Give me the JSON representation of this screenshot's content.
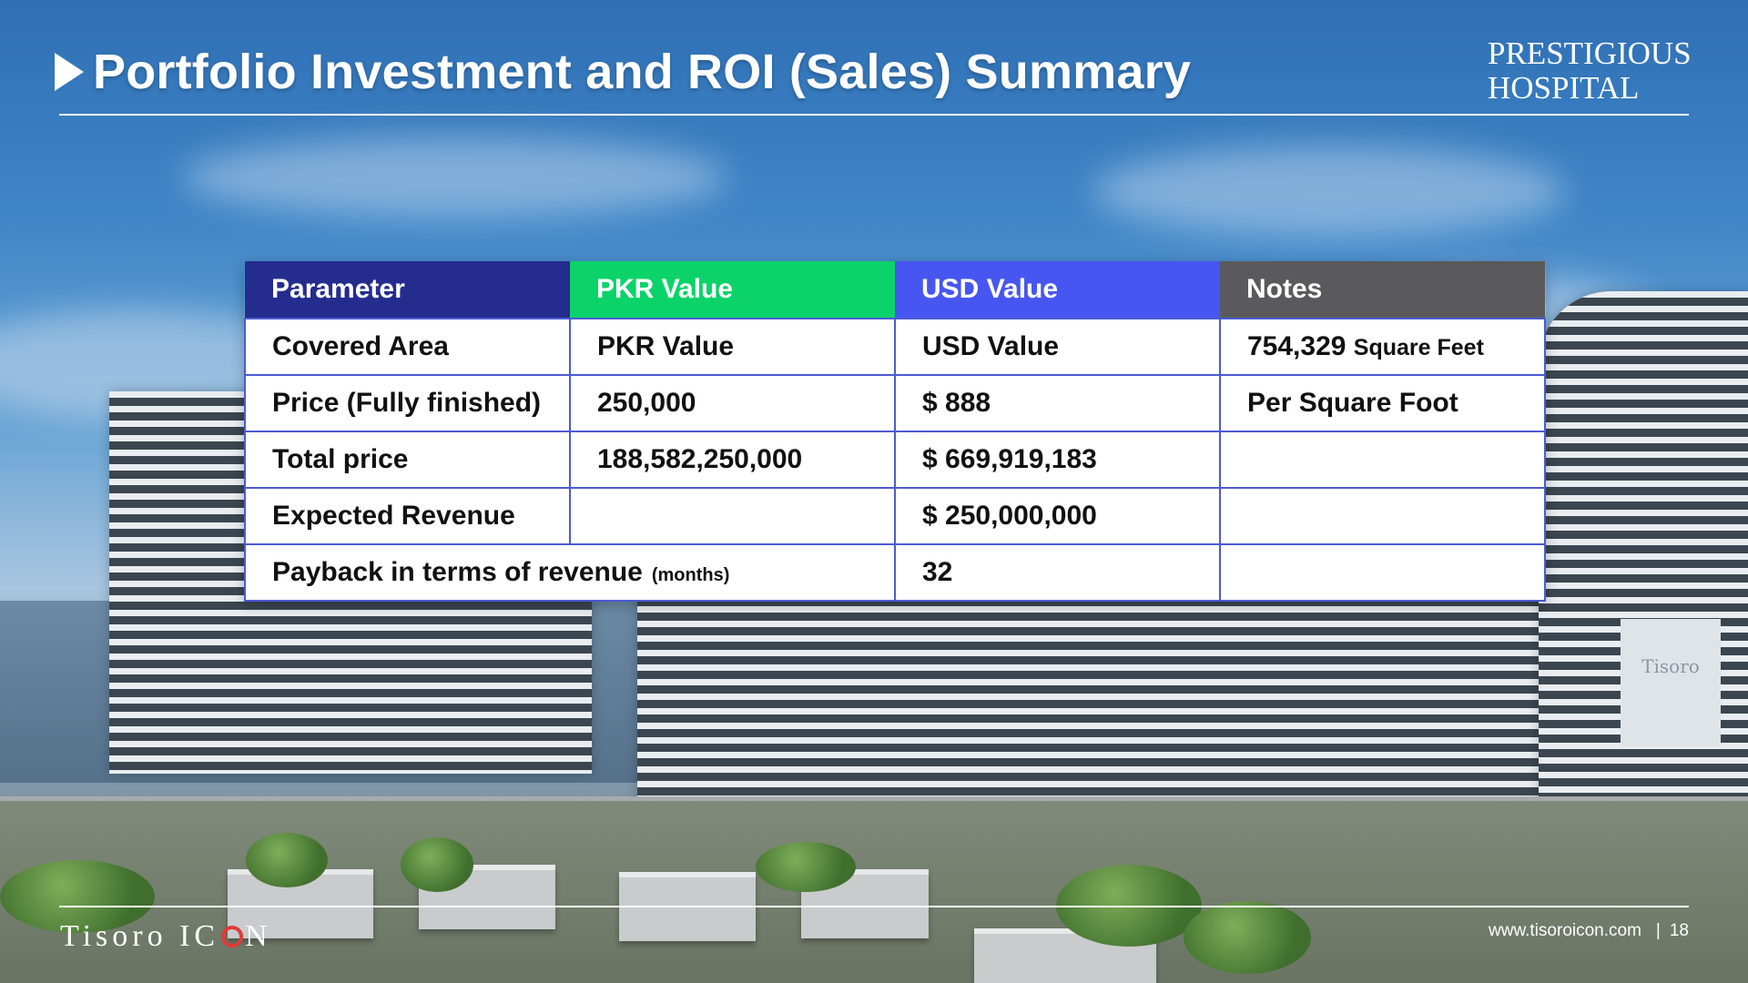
{
  "slide": {
    "title": "Portfolio Investment and ROI (Sales) Summary",
    "brand_line1": "PRESTIGIOUS",
    "brand_line2": "HOSPITAL",
    "building_sign": "Tisoro"
  },
  "table": {
    "headers": [
      "Parameter",
      "PKR Value",
      "USD Value",
      "Notes"
    ],
    "header_colors": [
      "#242c8e",
      "#0bd36a",
      "#4856f1",
      "#5a5a5c"
    ],
    "rows": [
      {
        "parameter": "Covered Area",
        "pkr": "PKR Value",
        "usd": "USD Value",
        "notes_value": "754,329",
        "notes_unit": "Square Feet"
      },
      {
        "parameter": "Price (Fully finished)",
        "pkr": "250,000",
        "usd": "$ 888",
        "notes": "Per Square Foot"
      },
      {
        "parameter": "Total price",
        "pkr": "188,582,250,000",
        "usd": "$ 669,919,183",
        "notes": ""
      },
      {
        "parameter": "Expected Revenue",
        "pkr": "",
        "usd": "$ 250,000,000",
        "notes": ""
      },
      {
        "parameter": "Payback in terms of revenue",
        "parameter_suffix": "(months)",
        "usd": "32",
        "notes": ""
      }
    ]
  },
  "footer": {
    "logo_part1": "Tisoro IC",
    "logo_part2": "N",
    "url": "www.tisoroicon.com",
    "separator": "|",
    "page_number": "18"
  }
}
